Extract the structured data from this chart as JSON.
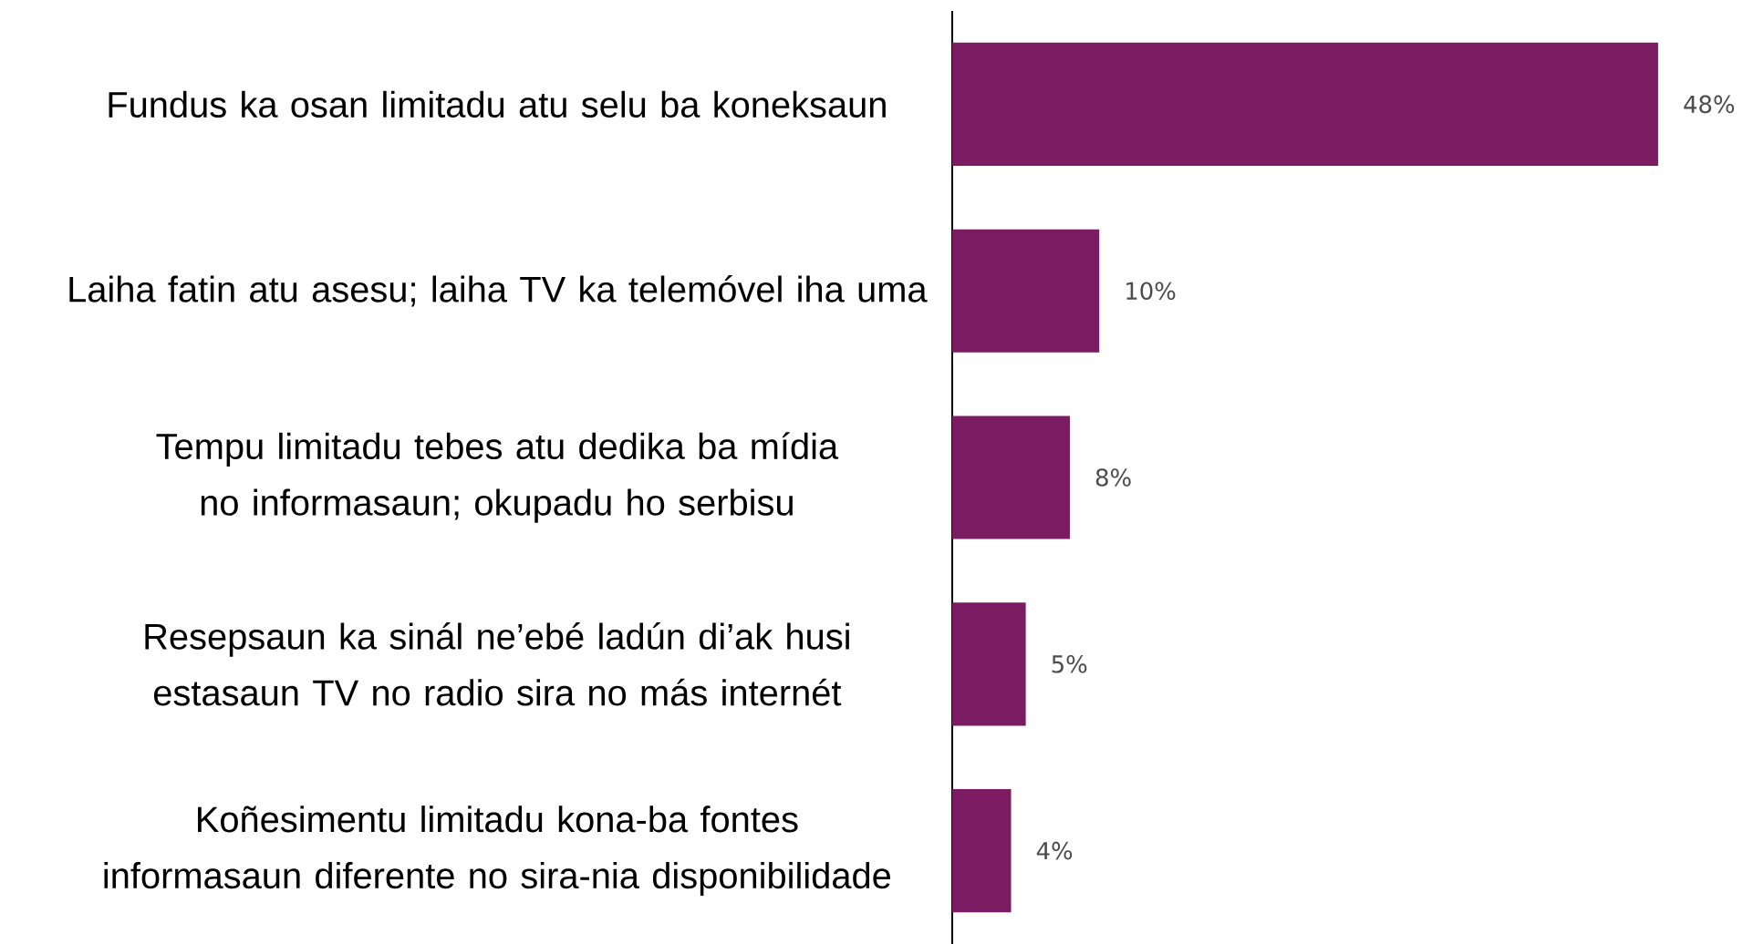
{
  "chart_data": {
    "type": "bar",
    "orientation": "horizontal",
    "categories": [
      "Fundus ka osan limitadu atu selu ba koneksaun",
      "Laiha fatin atu asesu; laiha TV ka telemóvel iha uma",
      "Tempu limitadu tebes atu dedika ba mídia no informasaun; okupadu ho serbisu",
      "Resepsaun ka sinál ne’ebé ladún di’ak husi estasaun TV no radio sira no más internét",
      "Koñesimentu limitadu kona-ba fontes informasaun diferente no sira-nia disponibilidade"
    ],
    "values": [
      48,
      10,
      8,
      5,
      4
    ],
    "value_labels": [
      "48%",
      "10%",
      "8%",
      "5%",
      "4%"
    ],
    "color": "#7b1c62",
    "tick_labels": "y",
    "grid": false
  }
}
